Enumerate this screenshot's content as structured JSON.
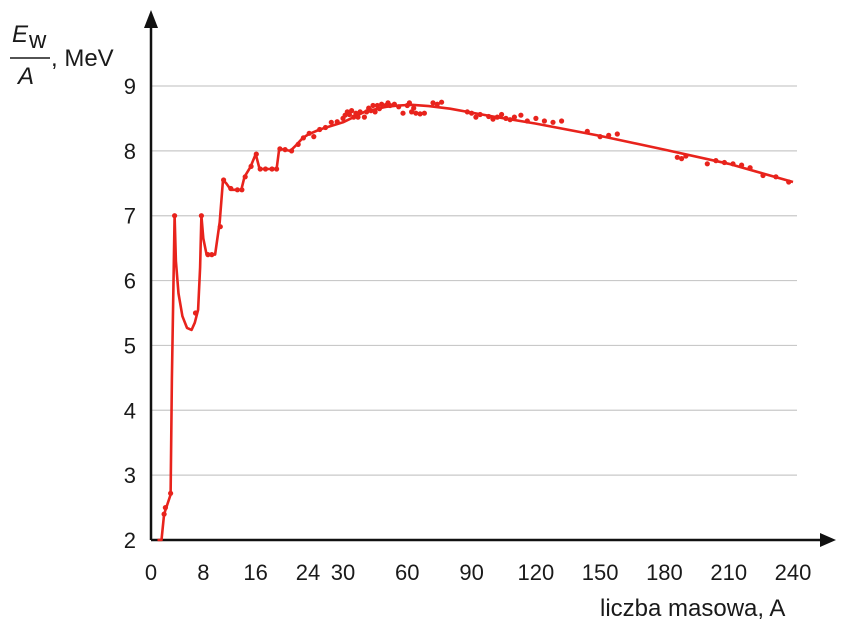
{
  "chart_data": {
    "type": "line",
    "ylabel": {
      "symbol": "E",
      "subscript": "w",
      "denominator": "A",
      "unit": ", MeV"
    },
    "xlabel": "liczba masowa, A",
    "ylim": [
      2,
      9.5
    ],
    "yticks": [
      "2",
      "3",
      "4",
      "5",
      "6",
      "7",
      "8",
      "9"
    ],
    "grid": true,
    "x_axis_note": "piecewise scale: 0–24 expanded, 24–240 compressed",
    "xticks": [
      {
        "value": 0,
        "label": "0"
      },
      {
        "value": 8,
        "label": "8"
      },
      {
        "value": 16,
        "label": "16"
      },
      {
        "value": 24,
        "label": "24"
      },
      {
        "value": 30,
        "label": "30"
      },
      {
        "value": 60,
        "label": "60"
      },
      {
        "value": 90,
        "label": "90"
      },
      {
        "value": 120,
        "label": "120"
      },
      {
        "value": 150,
        "label": "150"
      },
      {
        "value": 180,
        "label": "180"
      },
      {
        "value": 210,
        "label": "210"
      },
      {
        "value": 240,
        "label": "240"
      }
    ],
    "color": "#e8231c",
    "curve": [
      [
        1,
        0.0
      ],
      [
        1.6,
        1.8
      ],
      [
        2,
        2.4
      ],
      [
        3,
        2.7
      ],
      [
        3.2,
        4.5
      ],
      [
        3.6,
        7.0
      ],
      [
        3.8,
        6.3
      ],
      [
        4.2,
        5.8
      ],
      [
        4.8,
        5.45
      ],
      [
        5.5,
        5.27
      ],
      [
        6.2,
        5.24
      ],
      [
        6.7,
        5.35
      ],
      [
        7.2,
        5.55
      ],
      [
        7.5,
        6.2
      ],
      [
        7.7,
        7.0
      ],
      [
        8,
        6.65
      ],
      [
        8.5,
        6.4
      ],
      [
        9,
        6.4
      ],
      [
        9.8,
        6.4
      ],
      [
        10.5,
        6.9
      ],
      [
        11,
        7.55
      ],
      [
        11.5,
        7.5
      ],
      [
        12.2,
        7.4
      ],
      [
        13,
        7.4
      ],
      [
        13.8,
        7.4
      ],
      [
        14.3,
        7.6
      ],
      [
        15.2,
        7.75
      ],
      [
        16,
        7.95
      ],
      [
        16.6,
        7.72
      ],
      [
        17.3,
        7.72
      ],
      [
        18.5,
        7.72
      ],
      [
        19.2,
        7.72
      ],
      [
        19.6,
        8.03
      ],
      [
        20.3,
        8.02
      ],
      [
        21.3,
        8.0
      ],
      [
        22.3,
        8.1
      ],
      [
        23.2,
        8.2
      ],
      [
        24,
        8.25
      ],
      [
        26,
        8.33
      ],
      [
        30,
        8.44
      ],
      [
        40,
        8.6
      ],
      [
        50,
        8.68
      ],
      [
        56,
        8.7
      ],
      [
        62,
        8.71
      ],
      [
        70,
        8.69
      ],
      [
        80,
        8.65
      ],
      [
        90,
        8.59
      ],
      [
        100,
        8.53
      ],
      [
        120,
        8.42
      ],
      [
        150,
        8.23
      ],
      [
        180,
        8.02
      ],
      [
        210,
        7.8
      ],
      [
        240,
        7.52
      ]
    ],
    "points": [
      [
        2,
        2.4
      ],
      [
        2.2,
        2.5
      ],
      [
        3,
        2.72
      ],
      [
        3.6,
        7.0
      ],
      [
        6.8,
        5.5
      ],
      [
        7.7,
        7.0
      ],
      [
        8.7,
        6.4
      ],
      [
        9.3,
        6.4
      ],
      [
        10.6,
        6.83
      ],
      [
        11.1,
        7.55
      ],
      [
        12.2,
        7.42
      ],
      [
        13.2,
        7.4
      ],
      [
        13.9,
        7.4
      ],
      [
        14.4,
        7.6
      ],
      [
        15.3,
        7.76
      ],
      [
        16.1,
        7.95
      ],
      [
        16.7,
        7.72
      ],
      [
        17.5,
        7.72
      ],
      [
        18.5,
        7.72
      ],
      [
        19.2,
        7.72
      ],
      [
        19.7,
        8.03
      ],
      [
        20.5,
        8.02
      ],
      [
        21.5,
        8.0
      ],
      [
        22.5,
        8.1
      ],
      [
        23.3,
        8.2
      ],
      [
        24.2,
        8.27
      ],
      [
        25,
        8.22
      ],
      [
        26,
        8.33
      ],
      [
        27,
        8.36
      ],
      [
        28,
        8.44
      ],
      [
        29,
        8.45
      ],
      [
        30,
        8.5
      ],
      [
        31,
        8.55
      ],
      [
        32,
        8.6
      ],
      [
        33,
        8.56
      ],
      [
        34,
        8.62
      ],
      [
        35,
        8.52
      ],
      [
        36,
        8.58
      ],
      [
        37,
        8.52
      ],
      [
        38,
        8.6
      ],
      [
        40,
        8.52
      ],
      [
        41,
        8.6
      ],
      [
        42,
        8.66
      ],
      [
        43,
        8.62
      ],
      [
        44,
        8.7
      ],
      [
        45,
        8.6
      ],
      [
        46,
        8.7
      ],
      [
        47,
        8.65
      ],
      [
        48,
        8.72
      ],
      [
        50,
        8.7
      ],
      [
        51,
        8.74
      ],
      [
        52,
        8.7
      ],
      [
        54,
        8.72
      ],
      [
        56,
        8.68
      ],
      [
        58,
        8.58
      ],
      [
        60,
        8.7
      ],
      [
        61,
        8.74
      ],
      [
        62,
        8.6
      ],
      [
        63,
        8.66
      ],
      [
        64,
        8.58
      ],
      [
        66,
        8.57
      ],
      [
        68,
        8.58
      ],
      [
        72,
        8.74
      ],
      [
        74,
        8.72
      ],
      [
        76,
        8.75
      ],
      [
        88,
        8.6
      ],
      [
        90,
        8.58
      ],
      [
        92,
        8.52
      ],
      [
        94,
        8.56
      ],
      [
        98,
        8.53
      ],
      [
        100,
        8.49
      ],
      [
        102,
        8.52
      ],
      [
        104,
        8.56
      ],
      [
        106,
        8.5
      ],
      [
        108,
        8.48
      ],
      [
        110,
        8.52
      ],
      [
        113,
        8.55
      ],
      [
        116,
        8.46
      ],
      [
        120,
        8.5
      ],
      [
        124,
        8.46
      ],
      [
        128,
        8.44
      ],
      [
        132,
        8.46
      ],
      [
        144,
        8.3
      ],
      [
        150,
        8.22
      ],
      [
        154,
        8.24
      ],
      [
        158,
        8.26
      ],
      [
        186,
        7.9
      ],
      [
        188,
        7.88
      ],
      [
        190,
        7.92
      ],
      [
        200,
        7.8
      ],
      [
        204,
        7.85
      ],
      [
        208,
        7.82
      ],
      [
        212,
        7.8
      ],
      [
        216,
        7.78
      ],
      [
        220,
        7.74
      ],
      [
        226,
        7.62
      ],
      [
        232,
        7.6
      ],
      [
        238,
        7.52
      ]
    ]
  }
}
